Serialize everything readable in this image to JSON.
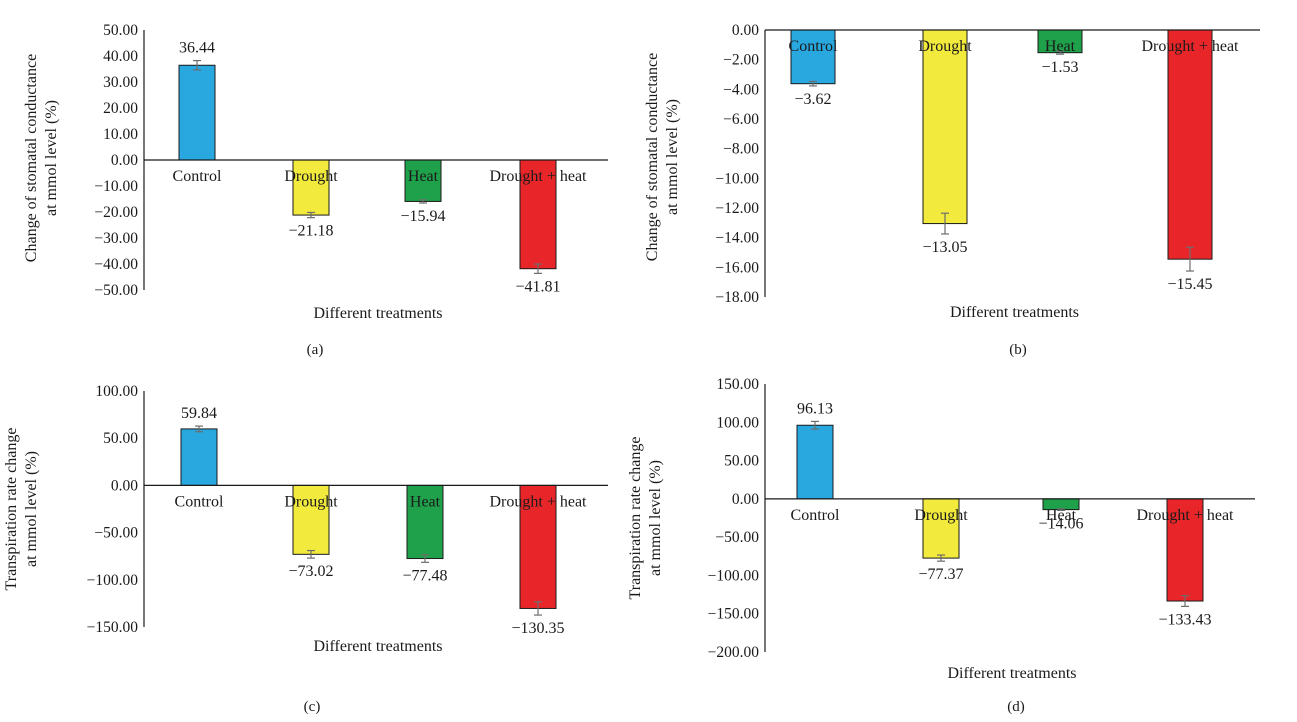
{
  "chart_data": [
    {
      "type": "bar",
      "panel_label": "(a)",
      "categories": [
        "Control",
        "Drought",
        "Heat",
        "Drought + heat"
      ],
      "values": [
        36.44,
        -21.18,
        -15.94,
        -41.81
      ],
      "data_labels": [
        "36.44",
        "−21.18",
        "−15.94",
        "−41.81"
      ],
      "error": [
        1.8,
        1.0,
        0.6,
        1.8
      ],
      "ylim": [
        -50,
        50
      ],
      "yticks": [
        "50.00",
        "40.00",
        "30.00",
        "20.00",
        "10.00",
        "0.00",
        "−10.00",
        "−20.00",
        "−30.00",
        "−40.00",
        "−50.00"
      ],
      "ylabel_lines": [
        "Change of stomatal conductance",
        "at mmol level (%)"
      ],
      "xlabel": "Different treatments",
      "grid": false
    },
    {
      "type": "bar",
      "panel_label": "(b)",
      "categories": [
        "Control",
        "Drought",
        "Heat",
        "Drought + heat"
      ],
      "values": [
        -3.62,
        -13.05,
        -1.53,
        -15.45
      ],
      "data_labels": [
        "−3.62",
        "−13.05",
        "−1.53",
        "−15.45"
      ],
      "error": [
        0.15,
        0.7,
        0.1,
        0.8
      ],
      "ylim": [
        -18,
        0
      ],
      "yticks": [
        "0.00",
        "−2.00",
        "−4.00",
        "−6.00",
        "−8.00",
        "−10.00",
        "−12.00",
        "−14.00",
        "−16.00",
        "−18.00"
      ],
      "ylabel_lines": [
        "Change of stomatal conductance",
        "at mmol level (%)"
      ],
      "xlabel": "Different treatments",
      "grid": false
    },
    {
      "type": "bar",
      "panel_label": "(c)",
      "categories": [
        "Control",
        "Drought",
        "Heat",
        "Drought + heat"
      ],
      "values": [
        59.84,
        -73.02,
        -77.48,
        -130.35
      ],
      "data_labels": [
        "59.84",
        "−73.02",
        "−77.48",
        "−130.35"
      ],
      "error": [
        3.0,
        4.0,
        4.0,
        7.0
      ],
      "ylim": [
        -150,
        100
      ],
      "yticks": [
        "100.00",
        "50.00",
        "0.00",
        "−50.00",
        "−100.00",
        "−150.00"
      ],
      "ylabel_lines": [
        "Transpiration rate change",
        "at mmol level (%)"
      ],
      "xlabel": "Different treatments",
      "grid": false
    },
    {
      "type": "bar",
      "panel_label": "(d)",
      "categories": [
        "Control",
        "Drought",
        "Heat",
        "Drought + heat"
      ],
      "values": [
        96.13,
        -77.37,
        -14.06,
        -133.43
      ],
      "data_labels": [
        "96.13",
        "−77.37",
        "−14.06",
        "−133.43"
      ],
      "error": [
        5.0,
        4.0,
        1.0,
        7.0
      ],
      "ylim": [
        -200,
        150
      ],
      "yticks": [
        "150.00",
        "100.00",
        "50.00",
        "0.00",
        "−50.00",
        "−100.00",
        "−150.00",
        "−200.00"
      ],
      "ylabel_lines": [
        "Transpiration rate change",
        "at mmol level (%)"
      ],
      "xlabel": "Different treatments",
      "grid": false
    }
  ],
  "colors": {
    "bars": [
      "#29a8e0",
      "#f2ea3c",
      "#1fa04a",
      "#e8262a"
    ],
    "bar_stroke": "#1a1a1a",
    "error_bar": "#6d6d6d",
    "axis": "#1a1a1a"
  }
}
